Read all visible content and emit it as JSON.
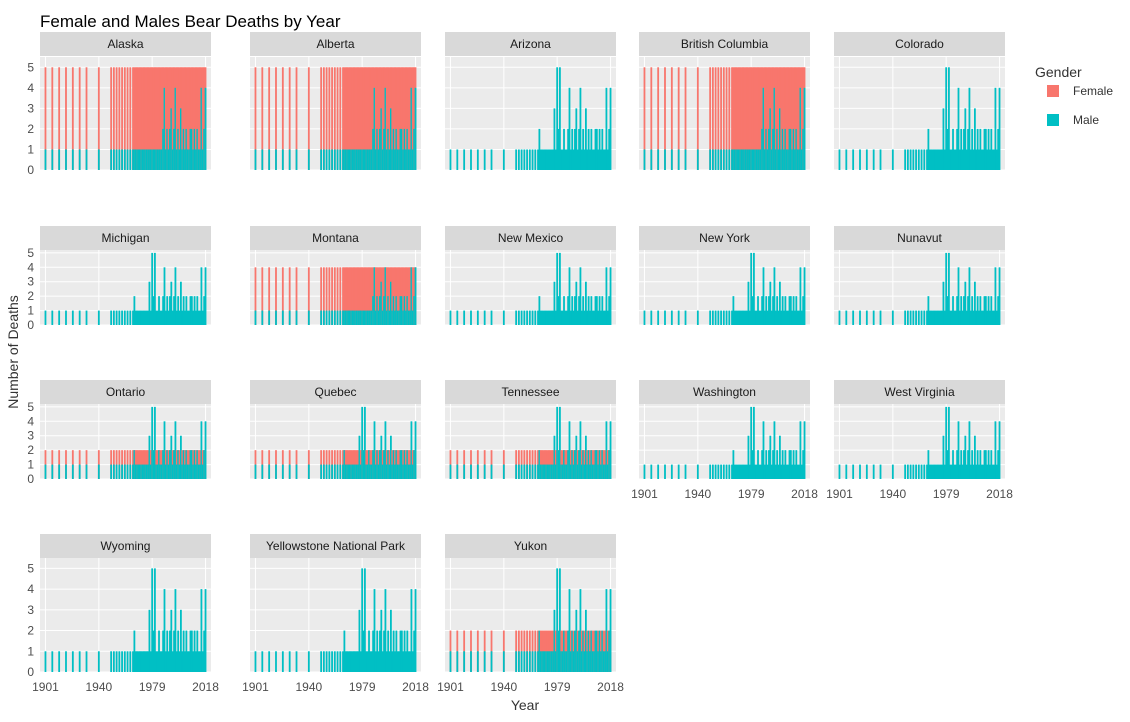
{
  "chart_data": {
    "type": "bar",
    "title": "Female and Males Bear Deaths by Year",
    "xlabel": "Year",
    "ylabel": "Number of Deaths",
    "x_ticks": [
      1901,
      1940,
      1979,
      2018
    ],
    "xlim": [
      1897,
      2022
    ],
    "legend": {
      "title": "Gender",
      "position": "right",
      "entries": [
        {
          "name": "Female",
          "color": "#F8766D"
        },
        {
          "name": "Male",
          "color": "#00BFC4"
        }
      ]
    },
    "colors": {
      "female": "#F8766D",
      "male": "#00BFC4",
      "panel": "#EBEBEB",
      "strip": "#D9D9D9"
    },
    "facet_rows": [
      {
        "ylim": [
          0,
          5.5
        ],
        "ticks": [
          0,
          1,
          2,
          3,
          4,
          5
        ],
        "panels": [
          "Alaska",
          "Alberta",
          "Arizona",
          "British Columbia",
          "Colorado"
        ]
      },
      {
        "ylim": [
          0,
          5.2
        ],
        "ticks": [
          0,
          1,
          2,
          3,
          4,
          5
        ],
        "panels": [
          "Michigan",
          "Montana",
          "New Mexico",
          "New York",
          "Nunavut"
        ]
      },
      {
        "ylim": [
          0,
          5.2
        ],
        "ticks": [
          0,
          1,
          2,
          3,
          4,
          5
        ],
        "panels": [
          "Ontario",
          "Quebec",
          "Tennessee",
          "Washington",
          "West Virginia"
        ]
      },
      {
        "ylim": [
          0,
          5.5
        ],
        "ticks": [
          0,
          1,
          2,
          3,
          4,
          5
        ],
        "panels": [
          "Wyoming",
          "Yellowstone National Park",
          "Yukon"
        ]
      }
    ],
    "male_counts": [
      [
        1901,
        1
      ],
      [
        1906,
        1
      ],
      [
        1911,
        1
      ],
      [
        1916,
        1
      ],
      [
        1921,
        1
      ],
      [
        1926,
        1
      ],
      [
        1931,
        1
      ],
      [
        1940,
        1
      ],
      [
        1949,
        1
      ],
      [
        1951,
        1
      ],
      [
        1953,
        1
      ],
      [
        1955,
        1
      ],
      [
        1957,
        1
      ],
      [
        1959,
        1
      ],
      [
        1961,
        1
      ],
      [
        1963,
        1
      ],
      [
        1965,
        1
      ],
      [
        1966,
        2
      ],
      [
        1967,
        1
      ],
      [
        1968,
        1
      ],
      [
        1969,
        1
      ],
      [
        1970,
        1
      ],
      [
        1971,
        1
      ],
      [
        1972,
        1
      ],
      [
        1973,
        1
      ],
      [
        1974,
        1
      ],
      [
        1975,
        1
      ],
      [
        1976,
        1
      ],
      [
        1977,
        3
      ],
      [
        1978,
        1
      ],
      [
        1979,
        5
      ],
      [
        1980,
        2
      ],
      [
        1981,
        5
      ],
      [
        1982,
        1
      ],
      [
        1983,
        1
      ],
      [
        1984,
        2
      ],
      [
        1985,
        1
      ],
      [
        1986,
        1
      ],
      [
        1987,
        2
      ],
      [
        1988,
        4
      ],
      [
        1989,
        1
      ],
      [
        1990,
        2
      ],
      [
        1991,
        1
      ],
      [
        1992,
        2
      ],
      [
        1993,
        3
      ],
      [
        1994,
        1
      ],
      [
        1995,
        2
      ],
      [
        1996,
        4
      ],
      [
        1997,
        1
      ],
      [
        1998,
        2
      ],
      [
        1999,
        1
      ],
      [
        2000,
        3
      ],
      [
        2001,
        1
      ],
      [
        2002,
        2
      ],
      [
        2003,
        1
      ],
      [
        2004,
        2
      ],
      [
        2005,
        1
      ],
      [
        2006,
        1
      ],
      [
        2007,
        2
      ],
      [
        2008,
        2
      ],
      [
        2009,
        1
      ],
      [
        2010,
        2
      ],
      [
        2011,
        1
      ],
      [
        2012,
        2
      ],
      [
        2013,
        1
      ],
      [
        2014,
        1
      ],
      [
        2015,
        4
      ],
      [
        2016,
        1
      ],
      [
        2017,
        2
      ],
      [
        2018,
        4
      ]
    ],
    "female_totals": {
      "Alaska": 5,
      "Alberta": 5,
      "British Columbia": 5,
      "Montana": 4,
      "Ontario": 2,
      "Quebec": 2,
      "Tennessee": 2,
      "Yukon": 2
    },
    "male_partial_panels": [
      "Alaska",
      "Alberta",
      "British Columbia",
      "Montana"
    ]
  }
}
